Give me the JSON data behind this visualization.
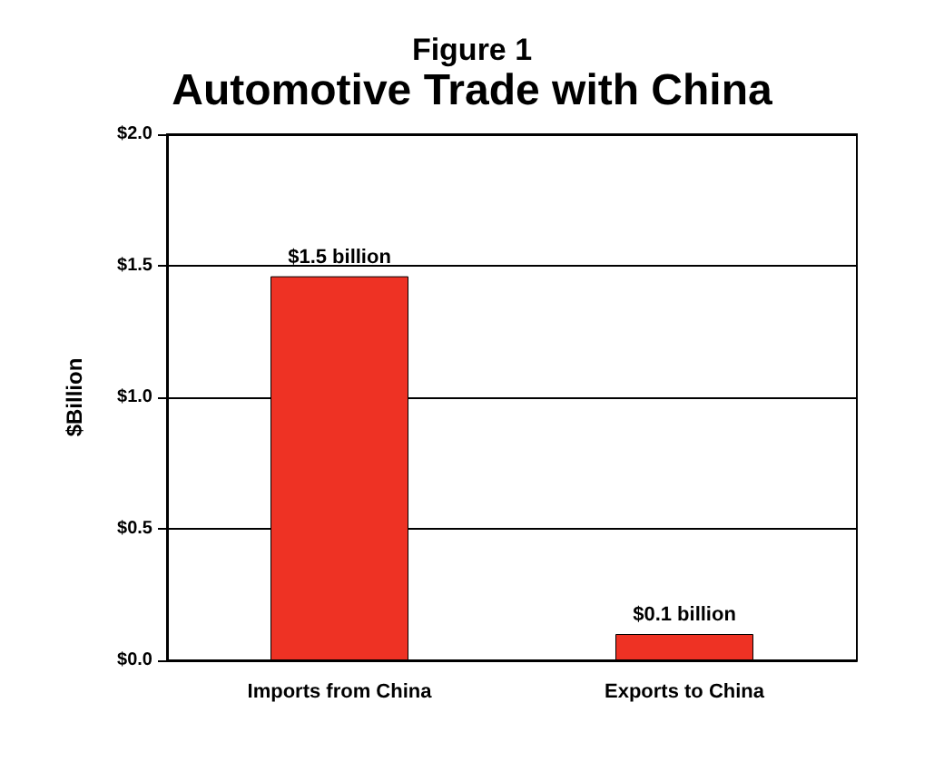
{
  "chart_data": {
    "type": "bar",
    "title": "Figure 1",
    "subtitle": "Automotive Trade with China",
    "ylabel": "$Billion",
    "categories": [
      "Imports from China",
      "Exports to China"
    ],
    "values": [
      1.46,
      0.1
    ],
    "color": "#ee3224",
    "value_labels": [
      "$1.5 billion",
      "$0.1 billion"
    ],
    "ylim": [
      0,
      2
    ],
    "yticks": [
      {
        "value": 0,
        "label": "$0.0"
      },
      {
        "value": 0.5,
        "label": "$0.5"
      },
      {
        "value": 1,
        "label": "$1.0"
      },
      {
        "value": 1.5,
        "label": "$1.5"
      },
      {
        "value": 2,
        "label": "$2.0"
      }
    ],
    "grid": "y"
  }
}
